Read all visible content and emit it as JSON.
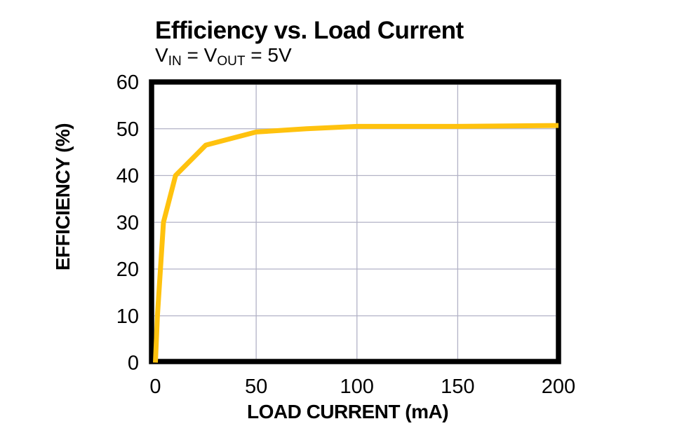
{
  "chart_data": {
    "type": "line",
    "title": "Efficiency vs. Load Current",
    "subtitle": {
      "text": "VIN = VOUT = 5V",
      "parts": {
        "v1": "V",
        "v1_sub": "IN",
        "eq1": " = ",
        "v2": "V",
        "v2_sub": "OUT",
        "eq2": " = 5V"
      }
    },
    "xlabel": "LOAD CURRENT (mA)",
    "ylabel": "EFFICIENCY (%)",
    "xlim": [
      0,
      200
    ],
    "ylim": [
      0,
      60
    ],
    "x_ticks": [
      0,
      50,
      100,
      150,
      200
    ],
    "y_ticks": [
      0,
      10,
      20,
      30,
      40,
      50,
      60
    ],
    "grid": true,
    "legend": "none",
    "series": [
      {
        "name": "efficiency",
        "x": [
          0,
          1,
          2.5,
          4,
          10,
          25,
          50,
          75,
          100,
          150,
          200
        ],
        "y": [
          0,
          10,
          20,
          30,
          40,
          46.5,
          49.3,
          50,
          50.5,
          50.5,
          50.7
        ]
      }
    ],
    "colors": {
      "curve": "#FFC20E",
      "grid": "#B2B2C6",
      "border": "#000000",
      "text": "#000000",
      "background": "#FFFFFF"
    }
  }
}
